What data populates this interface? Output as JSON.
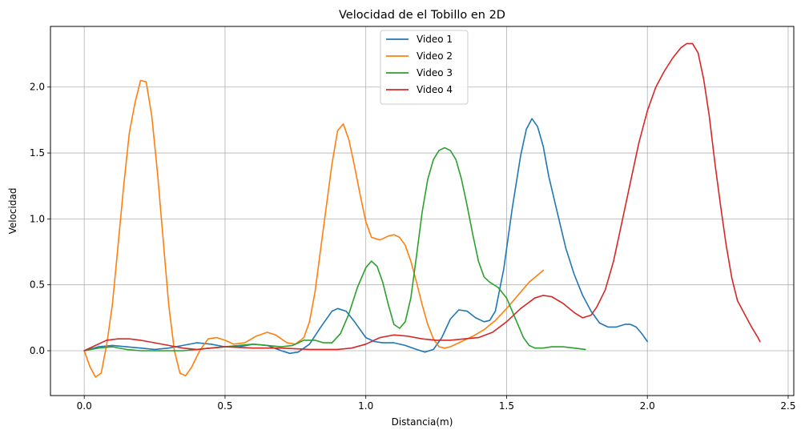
{
  "chart_data": {
    "type": "line",
    "title": "Velocidad de el Tobillo en 2D",
    "xlabel": "Distancia(m)",
    "ylabel": "Velocidad",
    "xlim": [
      -0.12,
      2.52
    ],
    "ylim": [
      -0.34,
      2.46
    ],
    "xticks": [
      0.0,
      0.5,
      1.0,
      1.5,
      2.0,
      2.5
    ],
    "xtick_labels": [
      "0.0",
      "0.5",
      "1.0",
      "1.5",
      "2.0",
      "2.5"
    ],
    "yticks": [
      0.0,
      0.5,
      1.0,
      1.5,
      2.0
    ],
    "ytick_labels": [
      "0.0",
      "0.5",
      "1.0",
      "1.5",
      "2.0"
    ],
    "grid": true,
    "legend_position": "top-center",
    "series": [
      {
        "name": "Video 1",
        "color": "#1f77b4",
        "points": [
          [
            0.0,
            0.0
          ],
          [
            0.05,
            0.03
          ],
          [
            0.1,
            0.04
          ],
          [
            0.15,
            0.03
          ],
          [
            0.2,
            0.02
          ],
          [
            0.25,
            0.01
          ],
          [
            0.3,
            0.02
          ],
          [
            0.35,
            0.04
          ],
          [
            0.4,
            0.06
          ],
          [
            0.45,
            0.05
          ],
          [
            0.5,
            0.03
          ],
          [
            0.55,
            0.03
          ],
          [
            0.6,
            0.05
          ],
          [
            0.65,
            0.04
          ],
          [
            0.7,
            0.0
          ],
          [
            0.73,
            -0.02
          ],
          [
            0.76,
            -0.01
          ],
          [
            0.8,
            0.05
          ],
          [
            0.84,
            0.18
          ],
          [
            0.88,
            0.3
          ],
          [
            0.9,
            0.32
          ],
          [
            0.93,
            0.3
          ],
          [
            0.96,
            0.22
          ],
          [
            1.0,
            0.1
          ],
          [
            1.03,
            0.07
          ],
          [
            1.06,
            0.06
          ],
          [
            1.1,
            0.06
          ],
          [
            1.14,
            0.04
          ],
          [
            1.18,
            0.01
          ],
          [
            1.21,
            -0.01
          ],
          [
            1.24,
            0.01
          ],
          [
            1.27,
            0.1
          ],
          [
            1.3,
            0.24
          ],
          [
            1.33,
            0.31
          ],
          [
            1.36,
            0.3
          ],
          [
            1.39,
            0.25
          ],
          [
            1.42,
            0.22
          ],
          [
            1.44,
            0.23
          ],
          [
            1.46,
            0.3
          ],
          [
            1.49,
            0.62
          ],
          [
            1.52,
            1.08
          ],
          [
            1.55,
            1.48
          ],
          [
            1.57,
            1.68
          ],
          [
            1.59,
            1.76
          ],
          [
            1.61,
            1.7
          ],
          [
            1.63,
            1.55
          ],
          [
            1.65,
            1.32
          ],
          [
            1.68,
            1.05
          ],
          [
            1.71,
            0.78
          ],
          [
            1.74,
            0.58
          ],
          [
            1.77,
            0.42
          ],
          [
            1.8,
            0.3
          ],
          [
            1.83,
            0.21
          ],
          [
            1.86,
            0.18
          ],
          [
            1.89,
            0.18
          ],
          [
            1.92,
            0.2
          ],
          [
            1.94,
            0.2
          ],
          [
            1.96,
            0.18
          ],
          [
            1.98,
            0.13
          ],
          [
            2.0,
            0.07
          ]
        ]
      },
      {
        "name": "Video 2",
        "color": "#ff7f0e",
        "points": [
          [
            0.0,
            0.0
          ],
          [
            0.02,
            -0.12
          ],
          [
            0.04,
            -0.2
          ],
          [
            0.06,
            -0.17
          ],
          [
            0.08,
            0.05
          ],
          [
            0.1,
            0.35
          ],
          [
            0.12,
            0.8
          ],
          [
            0.14,
            1.25
          ],
          [
            0.16,
            1.65
          ],
          [
            0.18,
            1.88
          ],
          [
            0.2,
            2.05
          ],
          [
            0.22,
            2.04
          ],
          [
            0.24,
            1.78
          ],
          [
            0.26,
            1.35
          ],
          [
            0.28,
            0.85
          ],
          [
            0.3,
            0.35
          ],
          [
            0.32,
            0.0
          ],
          [
            0.34,
            -0.17
          ],
          [
            0.36,
            -0.19
          ],
          [
            0.38,
            -0.13
          ],
          [
            0.41,
            0.0
          ],
          [
            0.44,
            0.09
          ],
          [
            0.47,
            0.1
          ],
          [
            0.5,
            0.08
          ],
          [
            0.53,
            0.05
          ],
          [
            0.57,
            0.06
          ],
          [
            0.61,
            0.11
          ],
          [
            0.65,
            0.14
          ],
          [
            0.68,
            0.12
          ],
          [
            0.72,
            0.06
          ],
          [
            0.75,
            0.05
          ],
          [
            0.78,
            0.1
          ],
          [
            0.8,
            0.22
          ],
          [
            0.82,
            0.45
          ],
          [
            0.84,
            0.78
          ],
          [
            0.86,
            1.1
          ],
          [
            0.88,
            1.42
          ],
          [
            0.9,
            1.67
          ],
          [
            0.92,
            1.72
          ],
          [
            0.94,
            1.6
          ],
          [
            0.96,
            1.4
          ],
          [
            0.98,
            1.18
          ],
          [
            1.0,
            0.98
          ],
          [
            1.02,
            0.86
          ],
          [
            1.05,
            0.84
          ],
          [
            1.08,
            0.87
          ],
          [
            1.1,
            0.88
          ],
          [
            1.12,
            0.86
          ],
          [
            1.14,
            0.8
          ],
          [
            1.16,
            0.68
          ],
          [
            1.18,
            0.52
          ],
          [
            1.2,
            0.35
          ],
          [
            1.22,
            0.2
          ],
          [
            1.24,
            0.09
          ],
          [
            1.26,
            0.03
          ],
          [
            1.28,
            0.02
          ],
          [
            1.3,
            0.03
          ],
          [
            1.34,
            0.07
          ],
          [
            1.38,
            0.11
          ],
          [
            1.42,
            0.16
          ],
          [
            1.46,
            0.23
          ],
          [
            1.5,
            0.32
          ],
          [
            1.54,
            0.42
          ],
          [
            1.58,
            0.52
          ],
          [
            1.63,
            0.61
          ]
        ]
      },
      {
        "name": "Video 3",
        "color": "#2ca02c",
        "points": [
          [
            0.0,
            0.0
          ],
          [
            0.05,
            0.02
          ],
          [
            0.1,
            0.03
          ],
          [
            0.15,
            0.01
          ],
          [
            0.2,
            0.0
          ],
          [
            0.25,
            0.0
          ],
          [
            0.3,
            0.0
          ],
          [
            0.35,
            0.0
          ],
          [
            0.4,
            0.01
          ],
          [
            0.45,
            0.02
          ],
          [
            0.5,
            0.03
          ],
          [
            0.55,
            0.04
          ],
          [
            0.6,
            0.05
          ],
          [
            0.65,
            0.04
          ],
          [
            0.7,
            0.03
          ],
          [
            0.74,
            0.04
          ],
          [
            0.78,
            0.08
          ],
          [
            0.82,
            0.08
          ],
          [
            0.85,
            0.06
          ],
          [
            0.88,
            0.06
          ],
          [
            0.91,
            0.13
          ],
          [
            0.94,
            0.28
          ],
          [
            0.97,
            0.48
          ],
          [
            1.0,
            0.63
          ],
          [
            1.02,
            0.68
          ],
          [
            1.04,
            0.64
          ],
          [
            1.06,
            0.52
          ],
          [
            1.08,
            0.35
          ],
          [
            1.1,
            0.2
          ],
          [
            1.12,
            0.17
          ],
          [
            1.14,
            0.22
          ],
          [
            1.16,
            0.4
          ],
          [
            1.18,
            0.72
          ],
          [
            1.2,
            1.05
          ],
          [
            1.22,
            1.3
          ],
          [
            1.24,
            1.45
          ],
          [
            1.26,
            1.52
          ],
          [
            1.28,
            1.54
          ],
          [
            1.3,
            1.52
          ],
          [
            1.32,
            1.45
          ],
          [
            1.34,
            1.3
          ],
          [
            1.36,
            1.1
          ],
          [
            1.38,
            0.88
          ],
          [
            1.4,
            0.68
          ],
          [
            1.42,
            0.56
          ],
          [
            1.44,
            0.52
          ],
          [
            1.47,
            0.48
          ],
          [
            1.5,
            0.4
          ],
          [
            1.53,
            0.25
          ],
          [
            1.56,
            0.1
          ],
          [
            1.58,
            0.04
          ],
          [
            1.6,
            0.02
          ],
          [
            1.63,
            0.02
          ],
          [
            1.66,
            0.03
          ],
          [
            1.7,
            0.03
          ],
          [
            1.74,
            0.02
          ],
          [
            1.78,
            0.01
          ]
        ]
      },
      {
        "name": "Video 4",
        "color": "#d62728",
        "points": [
          [
            0.0,
            0.0
          ],
          [
            0.04,
            0.04
          ],
          [
            0.08,
            0.08
          ],
          [
            0.12,
            0.09
          ],
          [
            0.16,
            0.09
          ],
          [
            0.2,
            0.08
          ],
          [
            0.25,
            0.06
          ],
          [
            0.3,
            0.04
          ],
          [
            0.35,
            0.02
          ],
          [
            0.4,
            0.01
          ],
          [
            0.45,
            0.02
          ],
          [
            0.5,
            0.03
          ],
          [
            0.6,
            0.02
          ],
          [
            0.7,
            0.02
          ],
          [
            0.8,
            0.01
          ],
          [
            0.9,
            0.01
          ],
          [
            0.95,
            0.02
          ],
          [
            1.0,
            0.05
          ],
          [
            1.05,
            0.1
          ],
          [
            1.1,
            0.12
          ],
          [
            1.15,
            0.11
          ],
          [
            1.2,
            0.09
          ],
          [
            1.25,
            0.08
          ],
          [
            1.3,
            0.08
          ],
          [
            1.35,
            0.09
          ],
          [
            1.4,
            0.1
          ],
          [
            1.45,
            0.14
          ],
          [
            1.5,
            0.22
          ],
          [
            1.55,
            0.32
          ],
          [
            1.6,
            0.4
          ],
          [
            1.63,
            0.42
          ],
          [
            1.66,
            0.41
          ],
          [
            1.7,
            0.36
          ],
          [
            1.74,
            0.29
          ],
          [
            1.77,
            0.25
          ],
          [
            1.8,
            0.27
          ],
          [
            1.82,
            0.33
          ],
          [
            1.85,
            0.46
          ],
          [
            1.88,
            0.68
          ],
          [
            1.91,
            0.98
          ],
          [
            1.94,
            1.28
          ],
          [
            1.97,
            1.58
          ],
          [
            2.0,
            1.82
          ],
          [
            2.03,
            2.0
          ],
          [
            2.06,
            2.12
          ],
          [
            2.09,
            2.22
          ],
          [
            2.12,
            2.3
          ],
          [
            2.14,
            2.33
          ],
          [
            2.16,
            2.33
          ],
          [
            2.18,
            2.26
          ],
          [
            2.2,
            2.06
          ],
          [
            2.22,
            1.78
          ],
          [
            2.24,
            1.42
          ],
          [
            2.26,
            1.1
          ],
          [
            2.28,
            0.8
          ],
          [
            2.3,
            0.55
          ],
          [
            2.32,
            0.38
          ],
          [
            2.35,
            0.26
          ],
          [
            2.37,
            0.18
          ],
          [
            2.39,
            0.11
          ],
          [
            2.4,
            0.07
          ]
        ]
      }
    ]
  }
}
